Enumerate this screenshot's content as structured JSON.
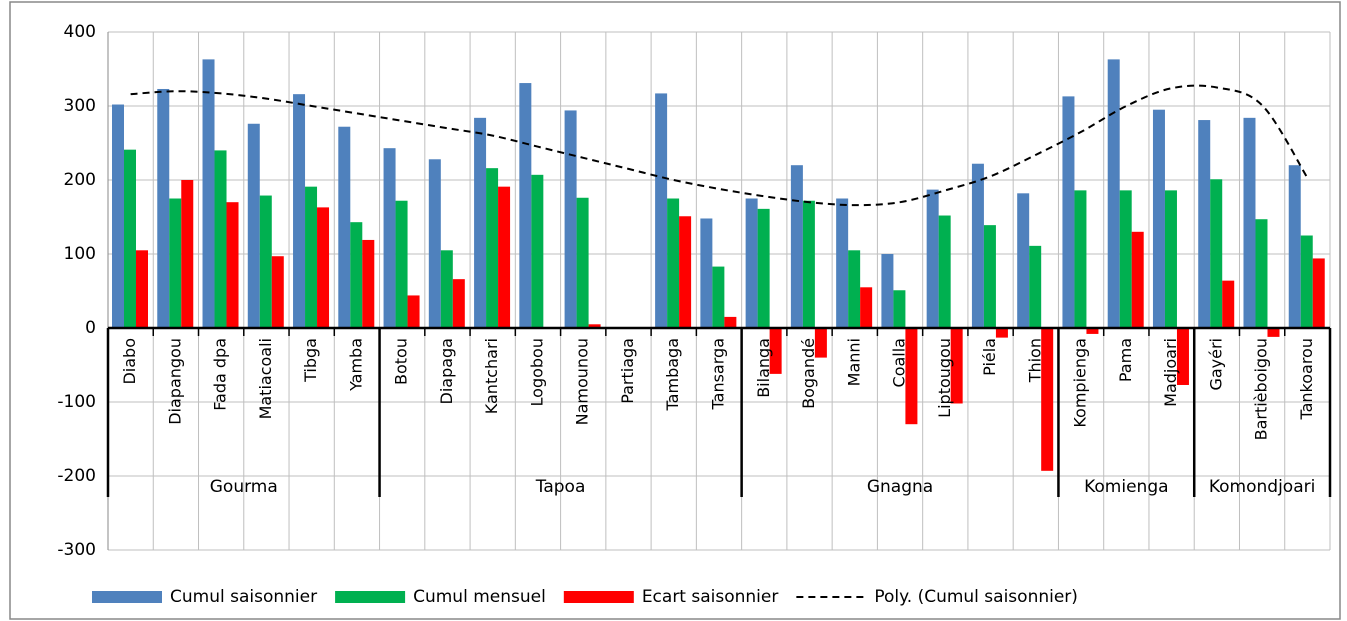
{
  "chart_data": {
    "type": "bar",
    "categories": [
      "Diabo",
      "Diapangou",
      "Fada dpa",
      "Matiacoali",
      "Tibga",
      "Yamba",
      "Botou",
      "Diapaga",
      "Kantchari",
      "Logobou",
      "Namounou",
      "Partiaga",
      "Tambaga",
      "Tansarga",
      "Bilanga",
      "Bogandé",
      "Manni",
      "Coalla",
      "Liptougou",
      "Piéla",
      "Thion",
      "Kompienga",
      "Pama",
      "Madjoari",
      "Gayéri",
      "Bartièboigou",
      "Tankoarou"
    ],
    "groups": [
      {
        "name": "Gourma",
        "count": 6
      },
      {
        "name": "Tapoa",
        "count": 8
      },
      {
        "name": "Gnagna",
        "count": 7
      },
      {
        "name": "Komienga",
        "count": 3
      },
      {
        "name": "Komondjoari",
        "count": 3
      }
    ],
    "series": [
      {
        "name": "Cumul saisonnier",
        "color": "#4f81bd",
        "values": [
          302,
          323,
          363,
          276,
          316,
          272,
          243,
          228,
          284,
          331,
          294,
          null,
          317,
          148,
          175,
          220,
          175,
          100,
          187,
          222,
          182,
          313,
          363,
          295,
          281,
          284,
          220
        ]
      },
      {
        "name": "Cumul mensuel",
        "color": "#00b050",
        "values": [
          241,
          175,
          240,
          179,
          191,
          143,
          172,
          105,
          216,
          207,
          176,
          null,
          175,
          83,
          161,
          172,
          105,
          51,
          152,
          139,
          111,
          186,
          186,
          186,
          201,
          147,
          125
        ]
      },
      {
        "name": "Ecart saisonnier",
        "color": "#ff0000",
        "values": [
          105,
          200,
          170,
          97,
          163,
          119,
          44,
          66,
          191,
          null,
          5,
          null,
          151,
          15,
          -62,
          -40,
          55,
          -130,
          -102,
          -13,
          -193,
          -8,
          130,
          -77,
          64,
          -12,
          94
        ]
      },
      {
        "name": "Poly. (Cumul saisonnier)",
        "type": "line",
        "color": "#000000",
        "values": [
          316,
          320,
          317,
          310,
          300,
          290,
          280,
          270,
          260,
          245,
          230,
          215,
          200,
          188,
          178,
          170,
          166,
          170,
          186,
          205,
          234,
          265,
          300,
          324,
          325,
          301,
          203
        ]
      }
    ],
    "ylim": [
      -300,
      400
    ],
    "yticks": [
      -300,
      -200,
      -100,
      0,
      100,
      200,
      300,
      400
    ],
    "grid": true
  }
}
